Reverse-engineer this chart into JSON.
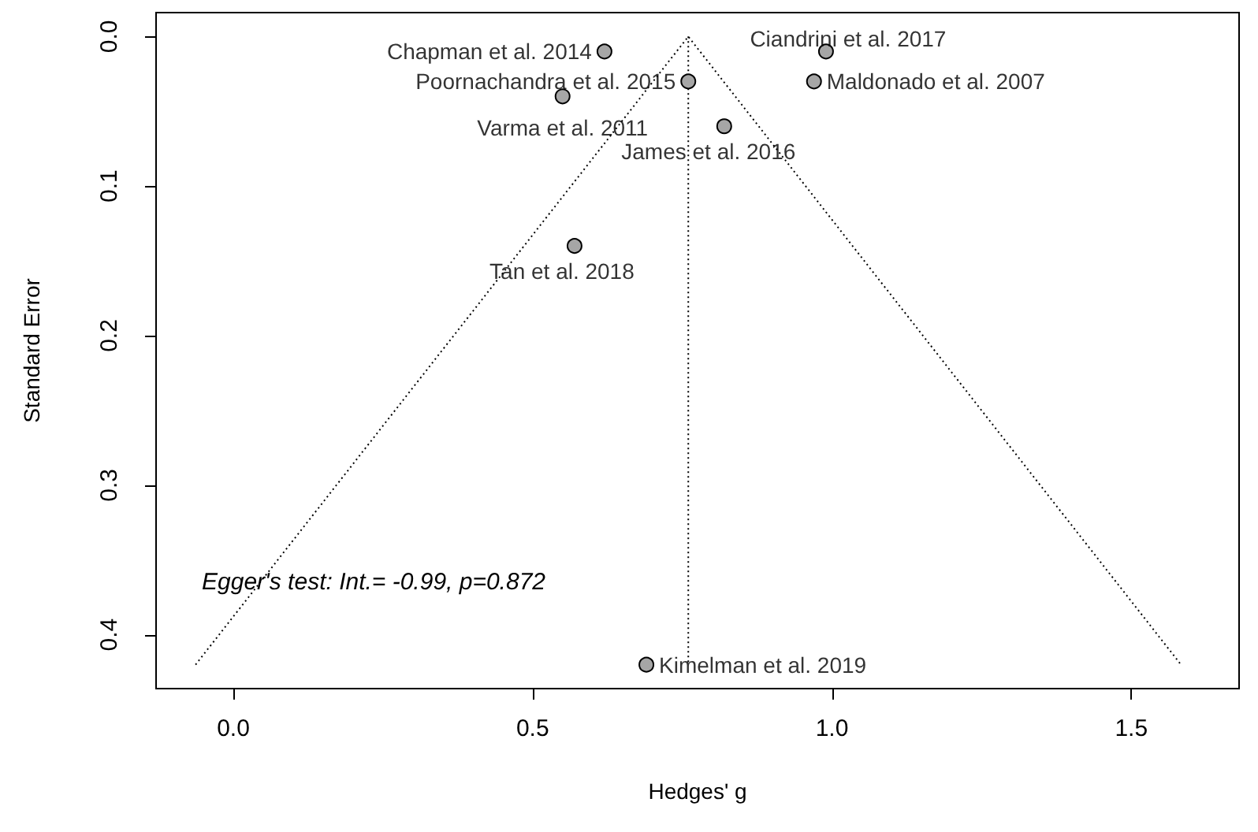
{
  "chart_data": {
    "type": "scatter",
    "xlabel": "Hedges' g",
    "ylabel": "Standard Error",
    "xlim": [
      -0.129,
      1.68
    ],
    "xticks": [
      {
        "value": 0,
        "label": "0.0"
      },
      {
        "value": 0.5,
        "label": "0.5"
      },
      {
        "value": 1,
        "label": "1.0"
      },
      {
        "value": 1.5,
        "label": "1.5"
      }
    ],
    "ylim": [
      0.436,
      -0.016
    ],
    "yticks": [
      {
        "value": 0,
        "label": "0.0"
      },
      {
        "value": 0.1,
        "label": "0.1"
      },
      {
        "value": 0.2,
        "label": "0.2"
      },
      {
        "value": 0.3,
        "label": "0.3"
      },
      {
        "value": 0.4,
        "label": "0.4"
      }
    ],
    "grid": false,
    "series": [
      {
        "type": "line",
        "color": "#000000",
        "line_style": "dotted",
        "marker": "none",
        "x": [
          -0.063,
          0.76,
          1.583
        ],
        "values": [
          0.42,
          0,
          0.42
        ]
      },
      {
        "type": "line",
        "color": "#000000",
        "line_style": "dotted",
        "marker": "none",
        "x": [
          0.76,
          0.76
        ],
        "values": [
          0,
          0.42
        ]
      },
      {
        "type": "scatter",
        "color": "#a6a6a6",
        "marker": "circle",
        "x": [
          0.62,
          0.99,
          0.76,
          0.97,
          0.55,
          0.82,
          0.57,
          0.69
        ],
        "values": [
          0.01,
          0.01,
          0.03,
          0.03,
          0.04,
          0.06,
          0.14,
          0.42
        ]
      }
    ],
    "annotations": [
      {
        "text": "Chapman et al. 2014",
        "x": 0.62,
        "y": 0.01
      },
      {
        "text": "Ciandrini et al. 2017",
        "x": 0.99,
        "y": 0.01
      },
      {
        "text": "Poornachandra et al. 2015",
        "x": 0.76,
        "y": 0.03
      },
      {
        "text": "Maldonado et al. 2007",
        "x": 0.97,
        "y": 0.03
      },
      {
        "text": "Varma et al. 2011",
        "x": 0.55,
        "y": 0.04
      },
      {
        "text": "James et al. 2016",
        "x": 0.82,
        "y": 0.06
      },
      {
        "text": "Tan et al. 2018",
        "x": 0.57,
        "y": 0.14
      },
      {
        "text": "Kimelman et al. 2019",
        "x": 0.69,
        "y": 0.42
      },
      "Egger's test: Int.= -0.99, p=0.872"
    ]
  }
}
